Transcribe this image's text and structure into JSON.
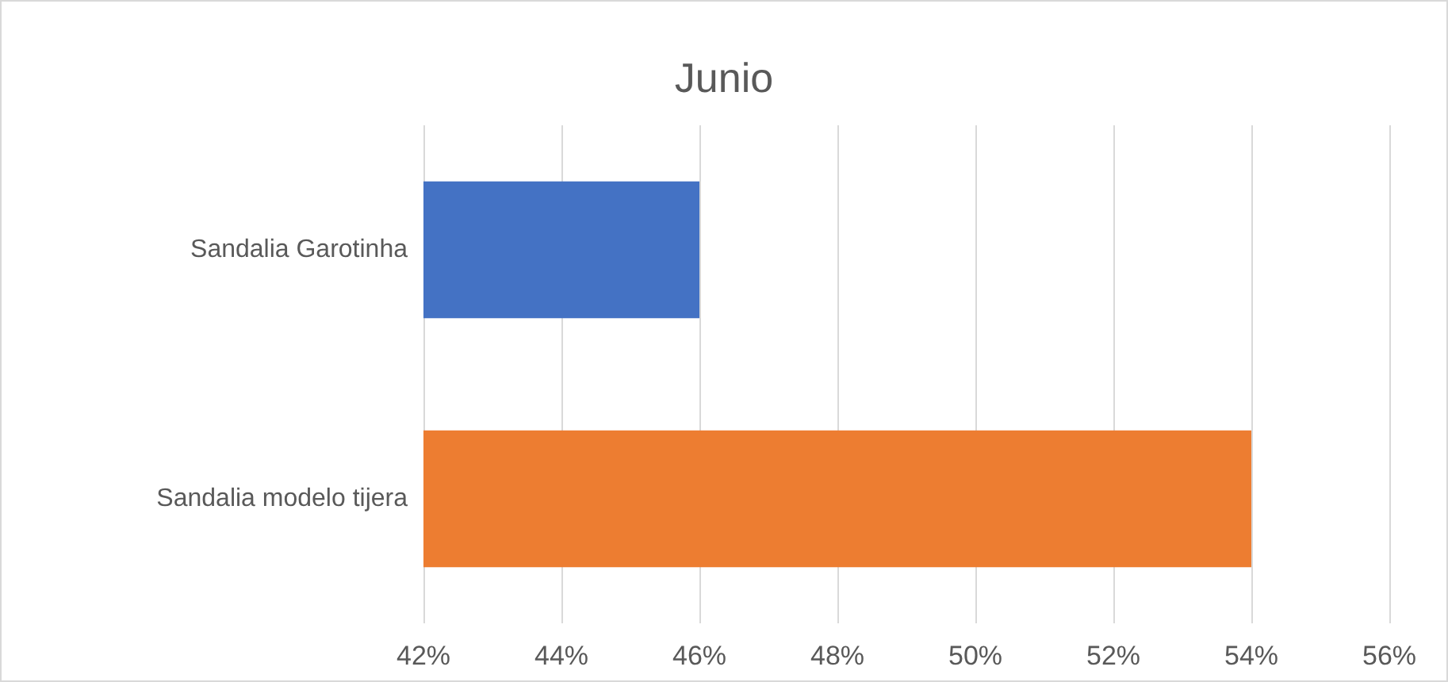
{
  "chart_data": {
    "type": "bar",
    "orientation": "horizontal",
    "title": "Junio",
    "categories": [
      "Sandalia Garotinha",
      "Sandalia modelo tijera"
    ],
    "values": [
      46,
      54
    ],
    "colors": [
      "#4472c4",
      "#ed7d31"
    ],
    "xlim": [
      42,
      56
    ],
    "xticks": [
      {
        "value": 42,
        "label": "42%"
      },
      {
        "value": 44,
        "label": "44%"
      },
      {
        "value": 46,
        "label": "46%"
      },
      {
        "value": 48,
        "label": "48%"
      },
      {
        "value": 50,
        "label": "50%"
      },
      {
        "value": 52,
        "label": "52%"
      },
      {
        "value": 54,
        "label": "54%"
      },
      {
        "value": 56,
        "label": "56%"
      }
    ],
    "grid": "x"
  }
}
